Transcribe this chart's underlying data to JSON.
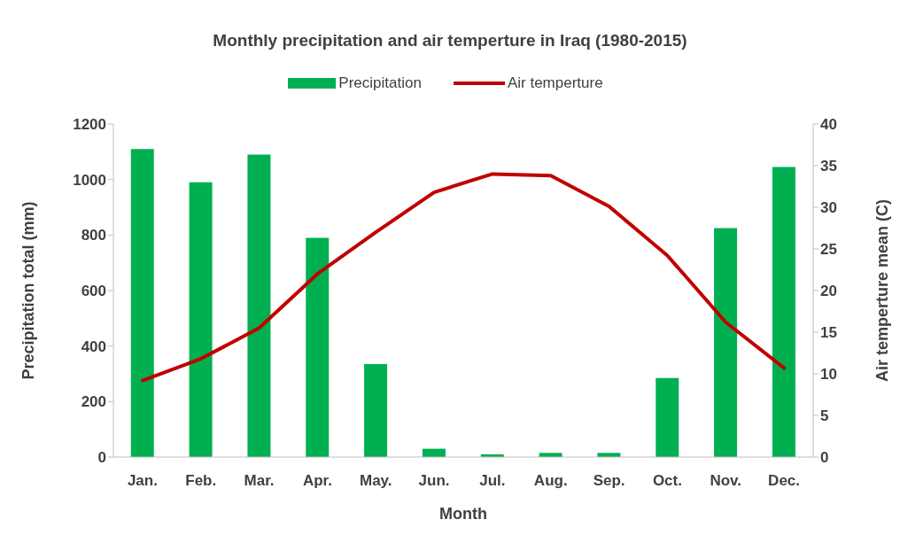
{
  "chart_data": {
    "type": "bar",
    "title": "Monthly precipitation and air temperture in Iraq (1980-2015)",
    "xlabel": "Month",
    "ylabel": "Precipitation total (mm)",
    "y2label": "Air temperture mean (C)",
    "categories": [
      "Jan.",
      "Feb.",
      "Mar.",
      "Apr.",
      "May.",
      "Jun.",
      "Jul.",
      "Aug.",
      "Sep.",
      "Oct.",
      "Nov.",
      "Dec."
    ],
    "series": [
      {
        "name": "Precipitation",
        "color": "#00b050",
        "values": [
          1110,
          990,
          1090,
          790,
          335,
          30,
          10,
          15,
          15,
          285,
          825,
          1045
        ]
      },
      {
        "name": "Air temperture",
        "type": "line",
        "axis": "y2",
        "color": "#c00000",
        "values": [
          9.2,
          11.8,
          15.5,
          22,
          27,
          31.8,
          34,
          33.8,
          30.1,
          24.2,
          16.2,
          10.7
        ]
      }
    ],
    "ylim": [
      0,
      1200
    ],
    "yticks": [
      0,
      200,
      400,
      600,
      800,
      1000,
      1200
    ],
    "y2lim": [
      0,
      40
    ],
    "y2ticks": [
      0,
      5,
      10,
      15,
      20,
      25,
      30,
      35,
      40
    ],
    "legend": "top",
    "marker": "none"
  }
}
